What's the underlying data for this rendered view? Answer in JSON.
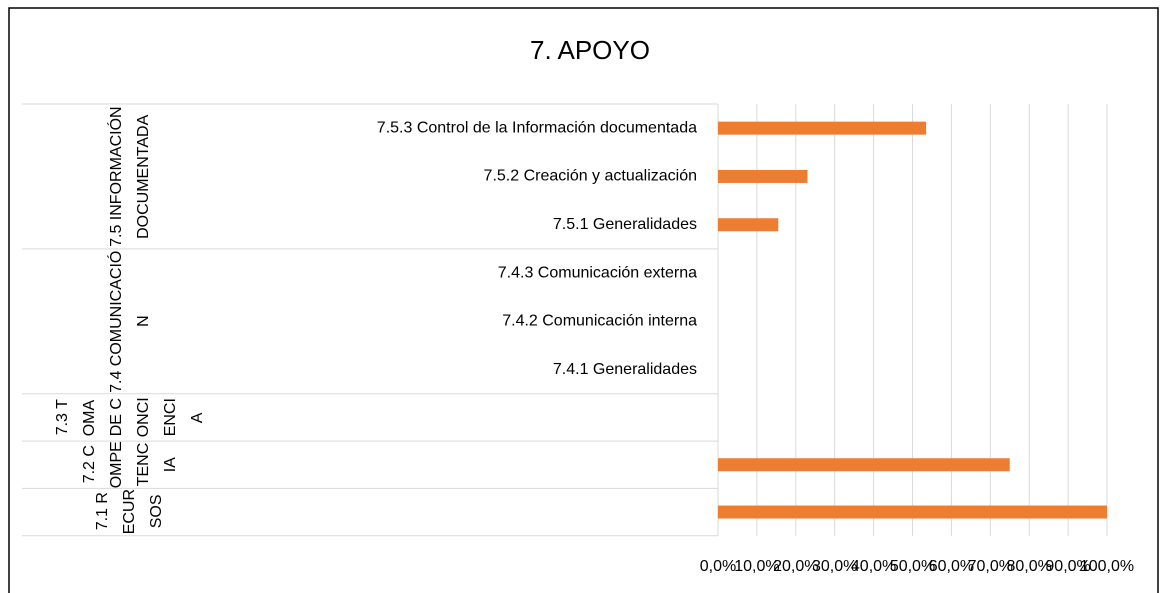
{
  "chart_data": {
    "type": "bar",
    "orientation": "horizontal",
    "title": "7. APOYO",
    "groups": [
      {
        "name": "7.5 INFORMACIÓN DOCUMENTADA",
        "categories": [
          "7.5.3 Control de la Información documentada",
          "7.5.2 Creación y actualización",
          "7.5.1 Generalidades"
        ]
      },
      {
        "name": "7.4 COMUNICACIÓN",
        "categories": [
          "7.4.3 Comunicación externa",
          "7.4.2 Comunicación interna",
          "7.4.1 Generalidades"
        ]
      },
      {
        "name": "7.3 TOMA DE CONCIENCIA",
        "categories": [
          null
        ]
      },
      {
        "name": "7.2 COMPETENCIA",
        "categories": [
          null
        ]
      },
      {
        "name": "7.1 RECURSOS",
        "categories": [
          null
        ]
      }
    ],
    "values": [
      53.5,
      23,
      15.5,
      0,
      0,
      0,
      0,
      75,
      100
    ],
    "color": "#ed7d31",
    "xlim": [
      0,
      100
    ],
    "xticks": [
      {
        "value": 0,
        "label": "0,0%"
      },
      {
        "value": 10,
        "label": "10,0%"
      },
      {
        "value": 20,
        "label": "20,0%"
      },
      {
        "value": 30,
        "label": "30,0%"
      },
      {
        "value": 40,
        "label": "40,0%"
      },
      {
        "value": 50,
        "label": "50,0%"
      },
      {
        "value": 60,
        "label": "60,0%"
      },
      {
        "value": 70,
        "label": "70,0%"
      },
      {
        "value": 80,
        "label": "80,0%"
      },
      {
        "value": 90,
        "label": "90,0%"
      },
      {
        "value": 100,
        "label": "100,0%"
      }
    ],
    "grid": true
  }
}
